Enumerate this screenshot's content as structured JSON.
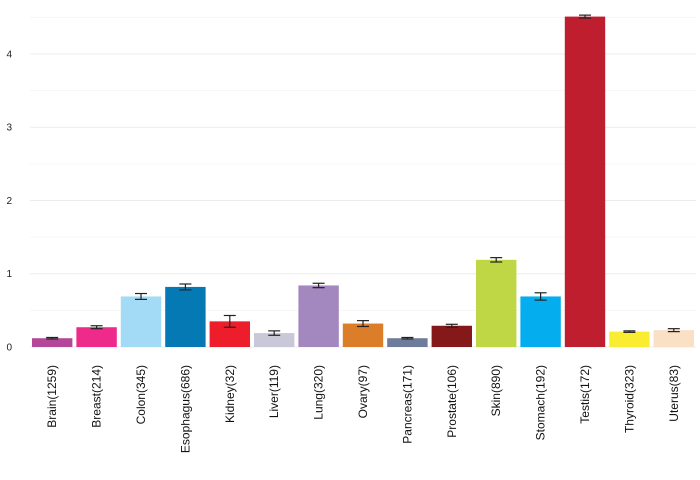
{
  "chart_data": {
    "type": "bar",
    "title": "",
    "xlabel": "",
    "ylabel": "",
    "ylim": [
      0,
      4.6
    ],
    "yticks": [
      0,
      1,
      2,
      3,
      4
    ],
    "grid": true,
    "legend": "none",
    "categories": [
      "Brain(1259)",
      "Breast(214)",
      "Colon(345)",
      "Esophagus(686)",
      "Kidney(32)",
      "Liver(119)",
      "Lung(320)",
      "Ovary(97)",
      "Pancreas(171)",
      "Prostate(106)",
      "Skin(890)",
      "Stomach(192)",
      "Testis(172)",
      "Thyroid(323)",
      "Uterus(83)"
    ],
    "values": [
      0.12,
      0.27,
      0.69,
      0.82,
      0.35,
      0.19,
      0.84,
      0.32,
      0.12,
      0.29,
      1.19,
      0.69,
      4.51,
      0.21,
      0.23
    ],
    "errors": [
      0.01,
      0.02,
      0.04,
      0.04,
      0.08,
      0.03,
      0.03,
      0.04,
      0.01,
      0.02,
      0.03,
      0.05,
      0.02,
      0.01,
      0.02
    ],
    "colors": [
      "#b5479a",
      "#ee2a8b",
      "#a3dbf7",
      "#0579b4",
      "#ee1d2b",
      "#c8c8d8",
      "#a387bf",
      "#dc7d29",
      "#6e7c9c",
      "#851818",
      "#bfd744",
      "#04adee",
      "#bf1e2e",
      "#f9ec31",
      "#fae1c5"
    ]
  }
}
